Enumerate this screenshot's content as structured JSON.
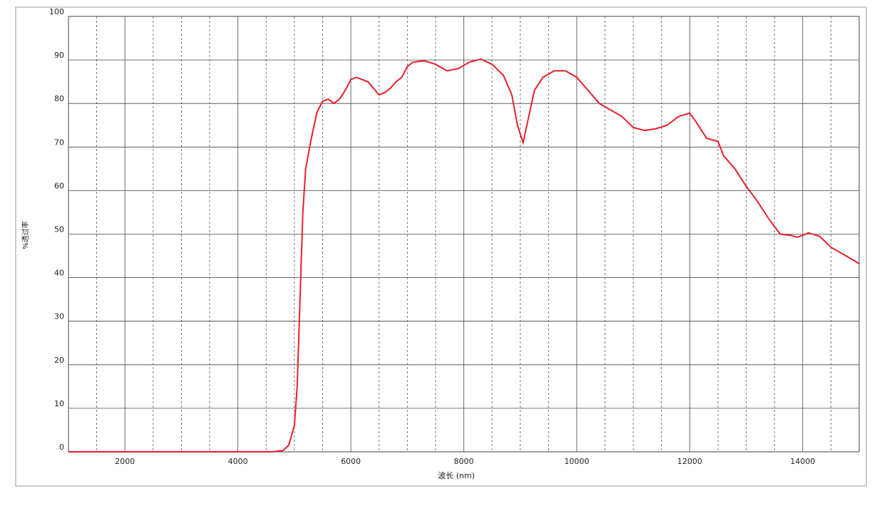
{
  "chart_data": {
    "type": "line",
    "x_label": "波长 (nm)",
    "y_label": "%透过率",
    "x": [
      1000,
      2000,
      3000,
      4000,
      4600,
      4800,
      4900,
      5000,
      5050,
      5100,
      5150,
      5200,
      5300,
      5400,
      5500,
      5600,
      5700,
      5800,
      5900,
      6000,
      6100,
      6200,
      6300,
      6400,
      6500,
      6600,
      6700,
      6800,
      6900,
      7000,
      7100,
      7300,
      7500,
      7700,
      7900,
      8100,
      8300,
      8500,
      8700,
      8850,
      8950,
      9050,
      9150,
      9250,
      9400,
      9600,
      9800,
      10000,
      10200,
      10400,
      10600,
      10800,
      11000,
      11200,
      11400,
      11600,
      11800,
      12000,
      12100,
      12300,
      12500,
      12600,
      12800,
      13000,
      13200,
      13400,
      13600,
      13800,
      13900,
      14000,
      14100,
      14300,
      14500,
      14700,
      14900,
      15000
    ],
    "series": [
      {
        "color": "#e8202a",
        "values": [
          0,
          0,
          0,
          0,
          0,
          0.3,
          1.5,
          6,
          15,
          35,
          55,
          65,
          72,
          78,
          80.5,
          81,
          80,
          81,
          83,
          85.5,
          86,
          85.5,
          85,
          83.5,
          82,
          82.5,
          83.5,
          85,
          86,
          88.5,
          89.5,
          89.8,
          89,
          87.5,
          88,
          89.5,
          90.2,
          89,
          86.5,
          82,
          75,
          71,
          77,
          83,
          86,
          87.5,
          87.5,
          86,
          83,
          80,
          78.5,
          77,
          74.5,
          73.8,
          74.2,
          75,
          77,
          77.8,
          76,
          72,
          71.3,
          68,
          65,
          61,
          57.5,
          53.5,
          50,
          49.7,
          49.3,
          49.7,
          50.3,
          49.5,
          47,
          45.5,
          44,
          43.2
        ]
      }
    ],
    "xlim": [
      1000,
      15000
    ],
    "ylim": [
      0,
      100
    ],
    "xticks": [
      2000,
      4000,
      6000,
      8000,
      10000,
      12000,
      14000
    ],
    "xminorticks": [
      1500,
      2500,
      3000,
      3500,
      4500,
      5000,
      5500,
      6500,
      7000,
      7500,
      8500,
      9000,
      9500,
      10500,
      11000,
      11500,
      12500,
      13000,
      13500,
      14500
    ],
    "yticks": [
      0,
      10,
      20,
      30,
      40,
      50,
      60,
      70,
      80,
      90,
      100
    ],
    "grid": true
  }
}
